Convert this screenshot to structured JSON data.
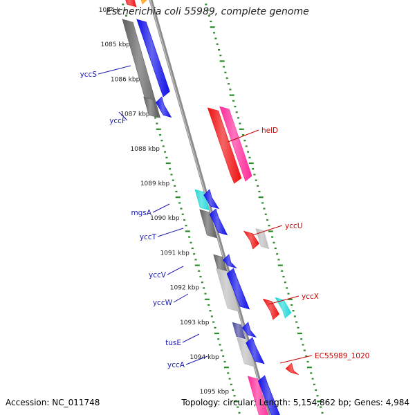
{
  "title": "Escherichia coli 55989, complete genome",
  "accession": "Accession: NC_011748",
  "topology": "Topology: circular; Length: 5,154,862 bp; Genes: 4,984",
  "ruler": [
    {
      "kbp": 1084,
      "label": "1084 k"
    },
    {
      "kbp": 1085,
      "label": "1085 kbp"
    },
    {
      "kbp": 1086,
      "label": "1086 kbp"
    },
    {
      "kbp": 1087,
      "label": "1087 kbp"
    },
    {
      "kbp": 1088,
      "label": "1088 kbp"
    },
    {
      "kbp": 1089,
      "label": "1089 kbp"
    },
    {
      "kbp": 1090,
      "label": "1090 kbp"
    },
    {
      "kbp": 1091,
      "label": "1091 kbp"
    },
    {
      "kbp": 1092,
      "label": "1092 kbp"
    },
    {
      "kbp": 1093,
      "label": "1093 kbp"
    },
    {
      "kbp": 1094,
      "label": "1094 kbp"
    },
    {
      "kbp": 1095,
      "label": "1095 kbp"
    }
  ],
  "colors": {
    "backbone": "#8c8c8c",
    "ruler": "#2a8a2a",
    "left_label": "#1a1ab0",
    "right_label": "#cc0000",
    "blue": "#1010e6",
    "red": "#ee1010",
    "pink": "#ff2a99",
    "cyan": "#22d8d8",
    "dark_gray": "#606060",
    "light_gray": "#bdbdbd",
    "navy": "#4a4aa0",
    "orange": "#ff9900"
  },
  "left_genes": [
    {
      "name": "yccS"
    },
    {
      "name": "yccF"
    },
    {
      "name": "mgsA"
    },
    {
      "name": "yccT"
    },
    {
      "name": "yccV"
    },
    {
      "name": "yccW"
    },
    {
      "name": "tusE"
    },
    {
      "name": "yccA"
    }
  ],
  "right_genes": [
    {
      "name": "helD"
    },
    {
      "name": "yccU"
    },
    {
      "name": "yccX"
    },
    {
      "name": "EC55989_1020"
    }
  ]
}
